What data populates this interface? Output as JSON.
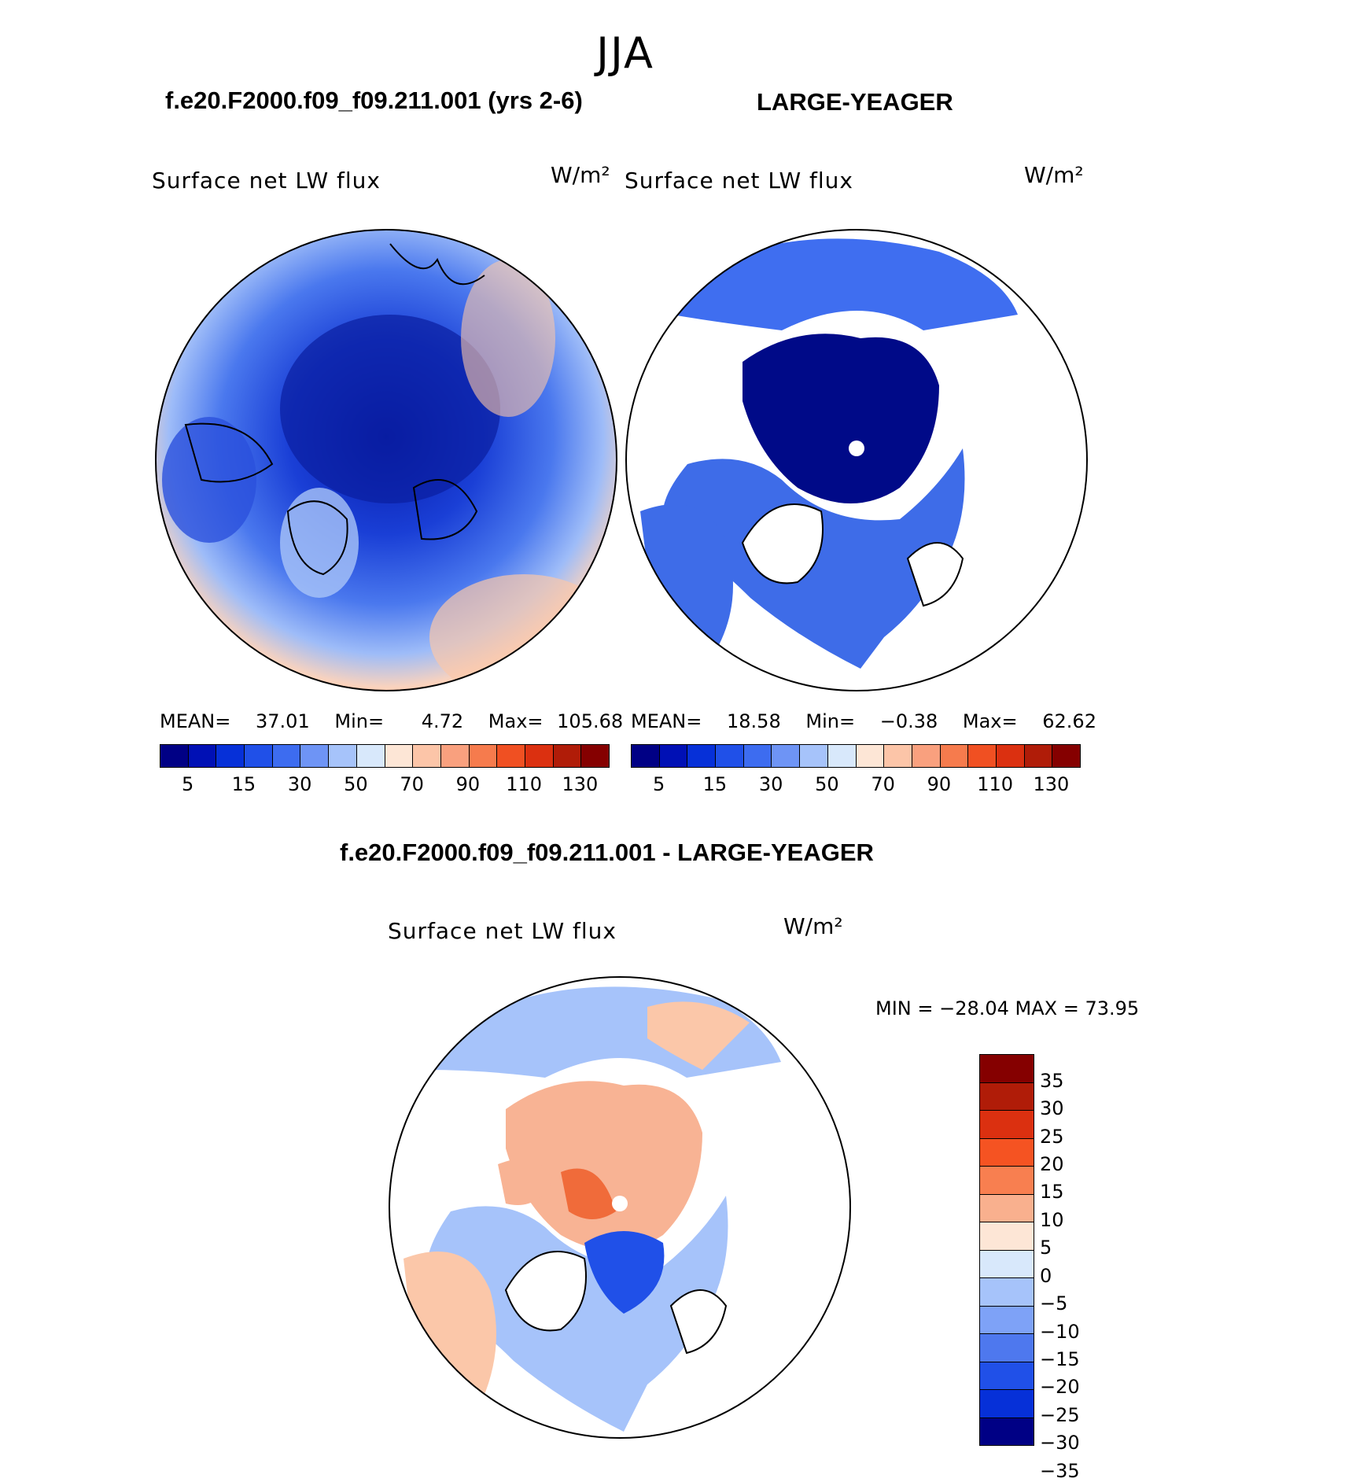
{
  "season": "JJA",
  "panel_left": {
    "case_name": "f.e20.F2000.f09_f09.211.001 (yrs 2-6)",
    "variable": "Surface net LW flux",
    "units": "W/m²",
    "stats": {
      "mean_label": "MEAN=",
      "mean": "37.01",
      "min_label": "Min=",
      "min": "4.72",
      "max_label": "Max=",
      "max": "105.68"
    }
  },
  "panel_right": {
    "case_name": "LARGE-YEAGER",
    "variable": "Surface net LW flux",
    "units": "W/m²",
    "stats": {
      "mean_label": "MEAN=",
      "mean": "18.58",
      "min_label": "Min=",
      "min": "−0.38",
      "max_label": "Max=",
      "max": "62.62"
    }
  },
  "panel_diff": {
    "title": "f.e20.F2000.f09_f09.211.001 - LARGE-YEAGER",
    "variable": "Surface net LW flux",
    "units": "W/m²",
    "minmax": "MIN = −28.04 MAX =   73.95"
  },
  "colorbar_main": {
    "colors": [
      "#000085",
      "#0010b5",
      "#0630d8",
      "#2050e8",
      "#3d6cf0",
      "#6e94f5",
      "#a6c3fa",
      "#d8e8fb",
      "#fde6d6",
      "#fcc5a8",
      "#f9a07e",
      "#f67b4d",
      "#f05022",
      "#db3010",
      "#b01c08",
      "#850000"
    ],
    "tick_labels": [
      "5",
      "15",
      "30",
      "50",
      "70",
      "90",
      "110",
      "130"
    ]
  },
  "colorbar_diff": {
    "colors": [
      "#850000",
      "#b01c08",
      "#db3010",
      "#f55322",
      "#f87f50",
      "#f9b08e",
      "#fde6d6",
      "#d8e8fb",
      "#a6c3fa",
      "#7ea2f7",
      "#4e78ee",
      "#2050e8",
      "#0630d8",
      "#000085"
    ],
    "tick_labels": [
      "35",
      "30",
      "25",
      "20",
      "15",
      "10",
      "5",
      "0",
      "−5",
      "−10",
      "−15",
      "−20",
      "−25",
      "−30",
      "−35"
    ]
  }
}
